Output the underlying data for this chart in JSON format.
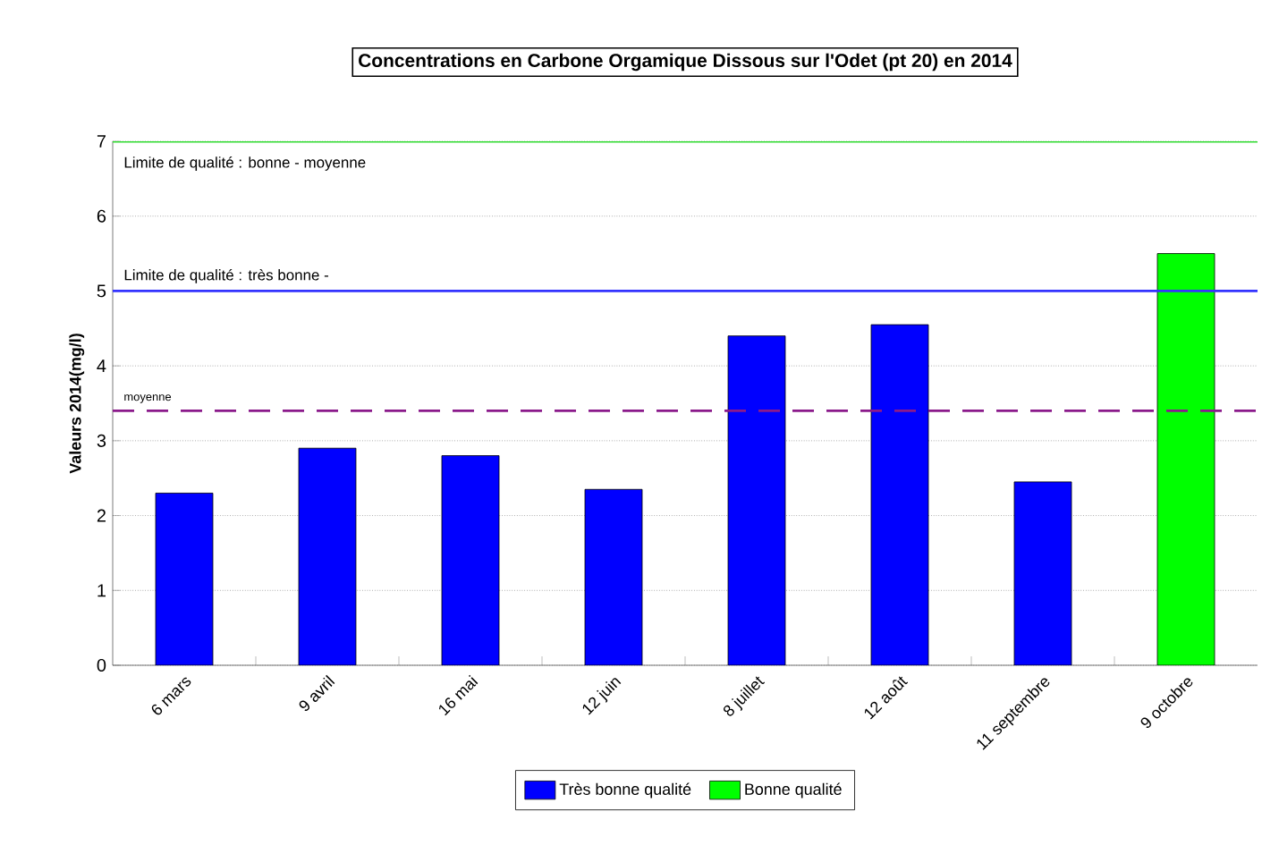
{
  "chart_data": {
    "type": "bar",
    "title": "Concentrations en Carbone Orgamique Dissous sur l'Odet (pt 20) en 2014",
    "ylabel": "Valeurs 2014(mg/l)",
    "categories": [
      "6 mars",
      "9 avril",
      "16 mai",
      "12 juin",
      "8 juillet",
      "12 août",
      "11 septembre",
      "9 octobre"
    ],
    "series": [
      {
        "name": "Très bonne qualité",
        "color": "#0000ff",
        "values": [
          2.3,
          2.9,
          2.8,
          2.35,
          4.4,
          4.55,
          2.45,
          null
        ]
      },
      {
        "name": "Bonne qualité",
        "color": "#00ff00",
        "values": [
          null,
          null,
          null,
          null,
          null,
          null,
          null,
          5.5
        ]
      }
    ],
    "ylim": [
      0,
      7
    ],
    "yticks": [
      0,
      1,
      2,
      3,
      4,
      5,
      6,
      7
    ],
    "grid": "y",
    "legend": "bottom",
    "ref_lines": [
      {
        "axis": "y",
        "value": 7,
        "label": "Limite de qualité : bonne - moyenne",
        "color": "#33dd33",
        "line_style": "solid"
      },
      {
        "axis": "y",
        "value": 5,
        "label": "Limite de qualité : très bonne -",
        "color": "#3333ff",
        "line_style": "solid"
      },
      {
        "axis": "y",
        "value": 3.4,
        "label": "moyenne",
        "color": "#8b1a8b",
        "line_style": "dashed"
      }
    ]
  }
}
